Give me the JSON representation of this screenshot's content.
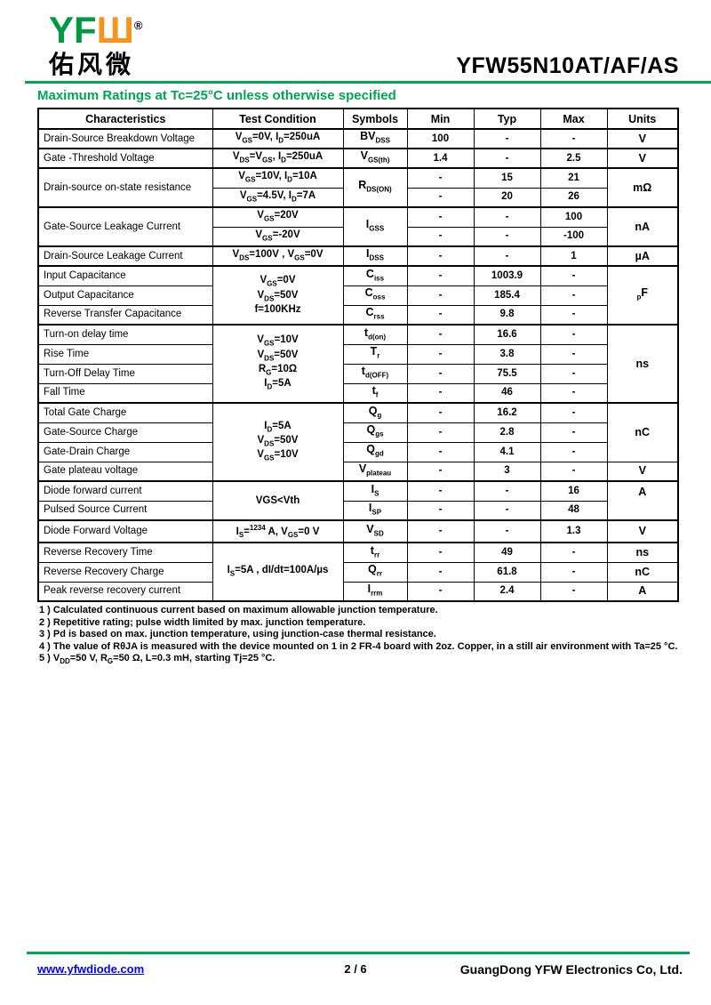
{
  "page": {
    "logo": {
      "yf": "YF",
      "w": "Ш",
      "registered": "®",
      "chinese": "佑风微"
    },
    "part_number": "YFW55N10AT/AF/AS",
    "section_title": "Maximum Ratings at Tc=25°C unless otherwise specified",
    "colors": {
      "brand_green": "#00A651",
      "brand_orange": "#F7941E",
      "link_blue": "#0000EE"
    }
  },
  "table": {
    "headers": [
      "Characteristics",
      "Test Condition",
      "Symbols",
      "Min",
      "Typ",
      "Max",
      "Units"
    ],
    "rows": [
      {
        "group": true,
        "cells": [
          {
            "t": "Drain-Source Breakdown Voltage",
            "cls": "char"
          },
          {
            "t": "V~GS~=0V, I~D~=250uA",
            "cls": "cond"
          },
          {
            "t": "BV~DSS~",
            "cls": "sym"
          },
          {
            "t": "100",
            "cls": "val"
          },
          {
            "t": "-",
            "cls": "val"
          },
          {
            "t": "-",
            "cls": "val"
          },
          {
            "t": "V",
            "cls": "unit"
          }
        ]
      },
      {
        "group": true,
        "cells": [
          {
            "t": "Gate -Threshold Voltage",
            "cls": "char"
          },
          {
            "t": "V~DS~=V~GS~, I~D~=250uA",
            "cls": "cond"
          },
          {
            "t": "V~GS(th)~",
            "cls": "sym"
          },
          {
            "t": "1.4",
            "cls": "val"
          },
          {
            "t": "-",
            "cls": "val"
          },
          {
            "t": "2.5",
            "cls": "val"
          },
          {
            "t": "V",
            "cls": "unit"
          }
        ]
      },
      {
        "group": true,
        "cells": [
          {
            "t": "Drain-source on-state resistance",
            "cls": "char",
            "rs": 2
          },
          {
            "t": "V~GS~=10V, I~D~=10A",
            "cls": "cond"
          },
          {
            "t": "R~DS(ON)~",
            "cls": "sym",
            "rs": 2
          },
          {
            "t": "-",
            "cls": "val"
          },
          {
            "t": "15",
            "cls": "val"
          },
          {
            "t": "21",
            "cls": "val"
          },
          {
            "t": "mΩ",
            "cls": "unit",
            "rs": 2
          }
        ]
      },
      {
        "cells": [
          {
            "t": "V~GS~=4.5V, I~D~=7A",
            "cls": "cond"
          },
          {
            "t": "-",
            "cls": "val"
          },
          {
            "t": "20",
            "cls": "val"
          },
          {
            "t": "26",
            "cls": "val"
          }
        ]
      },
      {
        "group": true,
        "cells": [
          {
            "t": "Gate-Source Leakage Current",
            "cls": "char",
            "rs": 2
          },
          {
            "t": "V~GS~=20V",
            "cls": "cond"
          },
          {
            "t": "I~GSS~",
            "cls": "sym",
            "rs": 2
          },
          {
            "t": "-",
            "cls": "val"
          },
          {
            "t": "-",
            "cls": "val"
          },
          {
            "t": "100",
            "cls": "val"
          },
          {
            "t": "nA",
            "cls": "unit",
            "rs": 2
          }
        ]
      },
      {
        "cells": [
          {
            "t": "V~GS~=-20V",
            "cls": "cond"
          },
          {
            "t": "-",
            "cls": "val"
          },
          {
            "t": "-",
            "cls": "val"
          },
          {
            "t": "-100",
            "cls": "val"
          }
        ]
      },
      {
        "group": true,
        "cells": [
          {
            "t": "Drain-Source Leakage Current",
            "cls": "char"
          },
          {
            "t": "V~DS~=100V , V~GS~=0V",
            "cls": "cond"
          },
          {
            "t": "I~DSS~",
            "cls": "sym"
          },
          {
            "t": "-",
            "cls": "val"
          },
          {
            "t": "-",
            "cls": "val"
          },
          {
            "t": "1",
            "cls": "val"
          },
          {
            "t": "µA",
            "cls": "unit"
          }
        ]
      },
      {
        "group": true,
        "cells": [
          {
            "t": "Input Capacitance",
            "cls": "char"
          },
          {
            "t": "V~GS~=0V\nV~DS~=50V\nf=100KHz",
            "cls": "cond",
            "rs": 3
          },
          {
            "t": "C~iss~",
            "cls": "sym"
          },
          {
            "t": "-",
            "cls": "val"
          },
          {
            "t": "1003.9",
            "cls": "val"
          },
          {
            "t": "-",
            "cls": "val"
          },
          {
            "t": "~p~F",
            "cls": "unit",
            "rs": 3
          }
        ]
      },
      {
        "cells": [
          {
            "t": "Output Capacitance",
            "cls": "char"
          },
          {
            "t": "C~oss~",
            "cls": "sym"
          },
          {
            "t": "-",
            "cls": "val"
          },
          {
            "t": "185.4",
            "cls": "val"
          },
          {
            "t": "-",
            "cls": "val"
          }
        ]
      },
      {
        "cells": [
          {
            "t": "Reverse Transfer Capacitance",
            "cls": "char"
          },
          {
            "t": "C~rss~",
            "cls": "sym"
          },
          {
            "t": "-",
            "cls": "val"
          },
          {
            "t": "9.8",
            "cls": "val"
          },
          {
            "t": "-",
            "cls": "val"
          }
        ]
      },
      {
        "group": true,
        "cells": [
          {
            "t": "Turn-on delay time",
            "cls": "char"
          },
          {
            "t": "V~GS~=10V\nV~DS~=50V\nR~G~=10Ω\nI~D~=5A",
            "cls": "cond",
            "rs": 4
          },
          {
            "t": "t~d(on)~",
            "cls": "sym"
          },
          {
            "t": "-",
            "cls": "val"
          },
          {
            "t": "16.6",
            "cls": "val"
          },
          {
            "t": "-",
            "cls": "val"
          },
          {
            "t": "ns",
            "cls": "unit",
            "rs": 4
          }
        ]
      },
      {
        "cells": [
          {
            "t": "Rise Time",
            "cls": "char"
          },
          {
            "t": "T~r~",
            "cls": "sym"
          },
          {
            "t": "-",
            "cls": "val"
          },
          {
            "t": "3.8",
            "cls": "val"
          },
          {
            "t": "-",
            "cls": "val"
          }
        ]
      },
      {
        "cells": [
          {
            "t": "Turn-Off Delay Time",
            "cls": "char"
          },
          {
            "t": "t~d(OFF)~",
            "cls": "sym"
          },
          {
            "t": "-",
            "cls": "val"
          },
          {
            "t": "75.5",
            "cls": "val"
          },
          {
            "t": "-",
            "cls": "val"
          }
        ]
      },
      {
        "cells": [
          {
            "t": "Fall Time",
            "cls": "char"
          },
          {
            "t": "t~f~",
            "cls": "sym"
          },
          {
            "t": "-",
            "cls": "val"
          },
          {
            "t": "46",
            "cls": "val"
          },
          {
            "t": "-",
            "cls": "val"
          }
        ]
      },
      {
        "group": true,
        "cells": [
          {
            "t": "Total Gate Charge",
            "cls": "char"
          },
          {
            "t": "I~D~=5A\nV~DS~=50V\nV~GS~=10V",
            "cls": "cond",
            "rs": 4
          },
          {
            "t": "Q~g~",
            "cls": "sym"
          },
          {
            "t": "-",
            "cls": "val"
          },
          {
            "t": "16.2",
            "cls": "val"
          },
          {
            "t": "-",
            "cls": "val"
          },
          {
            "t": "nC",
            "cls": "unit",
            "rs": 3
          }
        ]
      },
      {
        "cells": [
          {
            "t": "Gate-Source Charge",
            "cls": "char"
          },
          {
            "t": "Q~gs~",
            "cls": "sym"
          },
          {
            "t": "-",
            "cls": "val"
          },
          {
            "t": "2.8",
            "cls": "val"
          },
          {
            "t": "-",
            "cls": "val"
          }
        ]
      },
      {
        "cells": [
          {
            "t": "Gate-Drain Charge",
            "cls": "char"
          },
          {
            "t": "Q~gd~",
            "cls": "sym"
          },
          {
            "t": "-",
            "cls": "val"
          },
          {
            "t": "4.1",
            "cls": "val"
          },
          {
            "t": "-",
            "cls": "val"
          }
        ]
      },
      {
        "cells": [
          {
            "t": "Gate plateau voltage",
            "cls": "char"
          },
          {
            "t": "V~plateau~",
            "cls": "sym"
          },
          {
            "t": "-",
            "cls": "val"
          },
          {
            "t": "3",
            "cls": "val"
          },
          {
            "t": "-",
            "cls": "val"
          },
          {
            "t": "V",
            "cls": "unit"
          }
        ]
      },
      {
        "group": true,
        "cells": [
          {
            "t": "Diode forward current",
            "cls": "char"
          },
          {
            "t": "VGS<Vth",
            "cls": "cond",
            "rs": 2
          },
          {
            "t": "I~S~",
            "cls": "sym"
          },
          {
            "t": "-",
            "cls": "val"
          },
          {
            "t": "-",
            "cls": "val"
          },
          {
            "t": "16",
            "cls": "val"
          },
          {
            "t": "A",
            "cls": "unit top",
            "rs": 2
          }
        ]
      },
      {
        "cells": [
          {
            "t": "Pulsed Source Current",
            "cls": "char"
          },
          {
            "t": "I~SP~",
            "cls": "sym"
          },
          {
            "t": "-",
            "cls": "val"
          },
          {
            "t": "-",
            "cls": "val"
          },
          {
            "t": "48",
            "cls": "val"
          }
        ]
      },
      {
        "group": true,
        "cells": [
          {
            "t": "Diode Forward Voltage",
            "cls": "char"
          },
          {
            "t": "I~S~=^1234^ A, V~GS~=0 V",
            "cls": "cond"
          },
          {
            "t": "V~SD~",
            "cls": "sym"
          },
          {
            "t": "-",
            "cls": "val"
          },
          {
            "t": "-",
            "cls": "val"
          },
          {
            "t": "1.3",
            "cls": "val"
          },
          {
            "t": "V",
            "cls": "unit"
          }
        ]
      },
      {
        "group": true,
        "cells": [
          {
            "t": "Reverse Recovery Time",
            "cls": "char"
          },
          {
            "t": "I~S~=5A , dI/dt=100A/µs",
            "cls": "cond",
            "rs": 3
          },
          {
            "t": "t~rr~",
            "cls": "sym"
          },
          {
            "t": "-",
            "cls": "val"
          },
          {
            "t": "49",
            "cls": "val"
          },
          {
            "t": "-",
            "cls": "val"
          },
          {
            "t": "ns",
            "cls": "unit"
          }
        ]
      },
      {
        "cells": [
          {
            "t": "Reverse Recovery Charge",
            "cls": "char"
          },
          {
            "t": "Q~rr~",
            "cls": "sym"
          },
          {
            "t": "-",
            "cls": "val"
          },
          {
            "t": "61.8",
            "cls": "val"
          },
          {
            "t": "-",
            "cls": "val"
          },
          {
            "t": "nC",
            "cls": "unit"
          }
        ]
      },
      {
        "cells": [
          {
            "t": "Peak reverse recovery current",
            "cls": "char"
          },
          {
            "t": "I~rrm~",
            "cls": "sym"
          },
          {
            "t": "-",
            "cls": "val"
          },
          {
            "t": "2.4",
            "cls": "val"
          },
          {
            "t": "-",
            "cls": "val"
          },
          {
            "t": "A",
            "cls": "unit"
          }
        ]
      }
    ]
  },
  "notes": [
    "1 ) Calculated continuous current based on maximum allowable junction temperature.",
    "2 ) Repetitive rating; pulse width limited by max. junction temperature.",
    "3 ) Pd is based on max. junction temperature, using junction-case thermal resistance.",
    "4 ) The value of RθJA is measured with the device mounted on 1 in 2 FR-4 board with 2oz. Copper, in a still air environment with Ta=25 °C.",
    "5 ) V~DD~=50 V, R~G~=50 Ω, L=0.3 mH, starting Tj=25 °C."
  ],
  "footer": {
    "website": "www.yfwdiode.com",
    "page": "2 / 6",
    "company": "GuangDong YFW Electronics Co, Ltd."
  }
}
